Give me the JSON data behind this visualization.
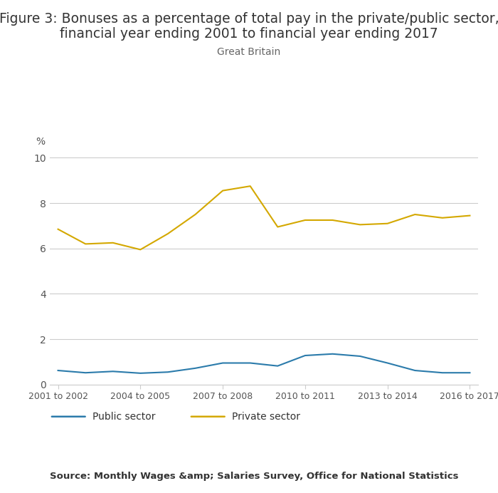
{
  "title_line1": "Figure 3: Bonuses as a percentage of total pay in the private/public sector,",
  "title_line2": "financial year ending 2001 to financial year ending 2017",
  "subtitle": "Great Britain",
  "source": "Source: Monthly Wages &amp; Salaries Survey, Office for National Statistics",
  "x_tick_labels": [
    "2001 to 2002",
    "2004 to 2005",
    "2007 to 2008",
    "2010 to 2011",
    "2013 to 2014",
    "2016 to 2017"
  ],
  "x_tick_positions": [
    0,
    3,
    6,
    9,
    12,
    15
  ],
  "public_sector": [
    0.62,
    0.52,
    0.58,
    0.5,
    0.55,
    0.72,
    0.95,
    0.95,
    0.82,
    1.28,
    1.35,
    1.25,
    0.95,
    0.62,
    0.52,
    0.52
  ],
  "private_sector": [
    6.85,
    6.2,
    6.25,
    5.95,
    6.65,
    7.5,
    8.55,
    8.75,
    6.95,
    7.25,
    7.25,
    7.05,
    7.1,
    7.5,
    7.35,
    7.45
  ],
  "public_color": "#2b7bab",
  "private_color": "#d4a800",
  "ylim": [
    0,
    10
  ],
  "yticks": [
    0,
    2,
    4,
    6,
    8,
    10
  ],
  "y_unit": "%",
  "legend_public": "Public sector",
  "legend_private": "Private sector",
  "background_color": "#ffffff",
  "grid_color": "#cccccc",
  "title_fontsize": 13.5,
  "subtitle_fontsize": 10,
  "source_fontsize": 9.5,
  "axis_label_color": "#555555",
  "title_color": "#333333"
}
